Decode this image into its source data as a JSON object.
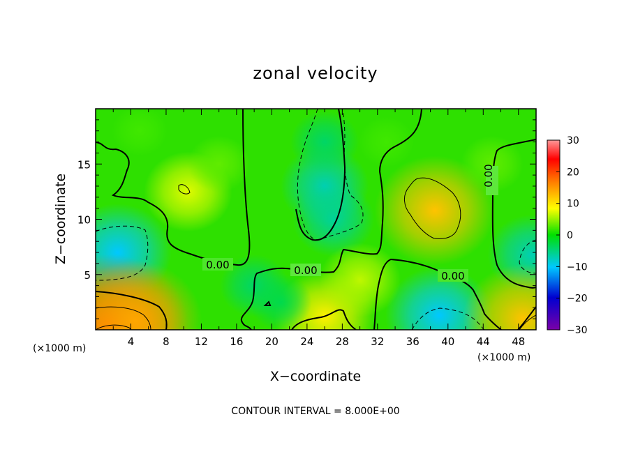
{
  "chart_data": {
    "type": "heatmap",
    "title": "zonal velocity",
    "xlabel": "X−coordinate",
    "ylabel": "Z−coordinate",
    "x_unit": "(×1000 m)",
    "y_unit": "(×1000 m)",
    "xlim": [
      0,
      50
    ],
    "ylim": [
      0,
      20
    ],
    "x_ticks": [
      "4",
      "8",
      "12",
      "16",
      "20",
      "24",
      "28",
      "32",
      "36",
      "40",
      "44",
      "48"
    ],
    "y_ticks": [
      "5",
      "10",
      "15"
    ],
    "colorbar": {
      "range": [
        -30,
        30
      ],
      "ticks": [
        "30",
        "20",
        "10",
        "0",
        "−10",
        "−20",
        "−30"
      ]
    },
    "contour_labels": [
      "0.00",
      "0.00",
      "0.00",
      "0.00"
    ],
    "footer": "CONTOUR INTERVAL = 8.000E+00",
    "features": [
      {
        "x": 10.5,
        "z": 12.5,
        "u": 7
      },
      {
        "x": 26,
        "z": 13,
        "u": -7
      },
      {
        "x": 27,
        "z": 10,
        "u": -6
      },
      {
        "x": 26,
        "z": 17,
        "u": -4
      },
      {
        "x": 2.5,
        "z": 7.0,
        "u": -10
      },
      {
        "x": 49.5,
        "z": 6.8,
        "u": -7
      },
      {
        "x": 38.5,
        "z": 10.8,
        "u": 12
      },
      {
        "x": 39,
        "z": 1.3,
        "u": -10
      },
      {
        "x": 1.5,
        "z": 0.3,
        "u": 18
      },
      {
        "x": 4.5,
        "z": 0.8,
        "u": 14
      },
      {
        "x": 26,
        "z": 1.2,
        "u": 9
      },
      {
        "x": 18,
        "z": 4.0,
        "u": -4
      },
      {
        "x": 21,
        "z": 2.5,
        "u": -3
      },
      {
        "x": 30,
        "z": 4.5,
        "u": 6
      },
      {
        "x": 14,
        "z": 15,
        "u": 3
      },
      {
        "x": 5,
        "z": 18,
        "u": 2
      },
      {
        "x": 48.5,
        "z": 1.0,
        "u": 12
      },
      {
        "x": 45,
        "z": 15,
        "u": 3
      },
      {
        "x": 33,
        "z": 17,
        "u": 2
      }
    ]
  }
}
